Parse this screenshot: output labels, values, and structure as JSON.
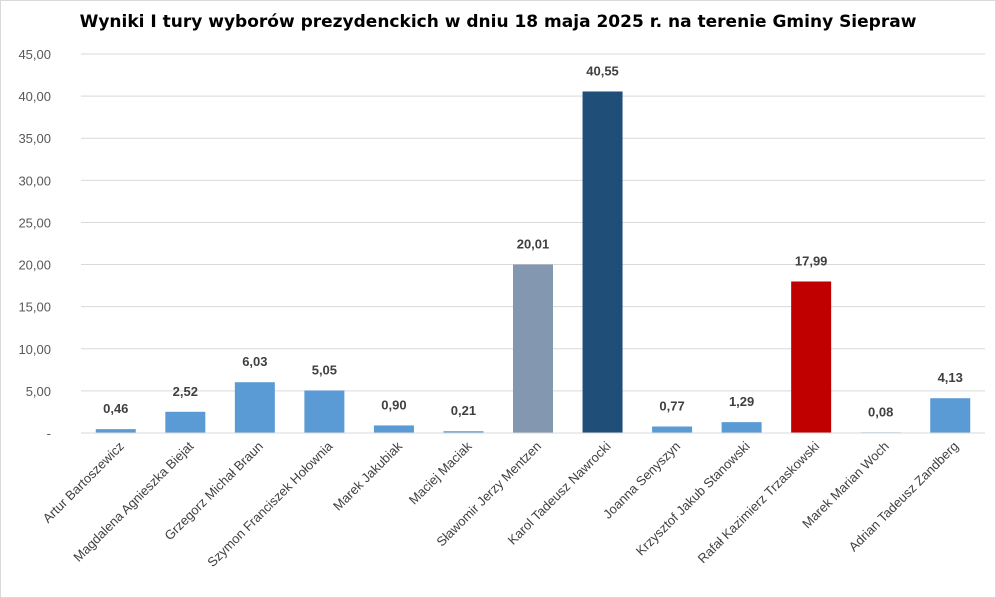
{
  "chart_data": {
    "type": "bar",
    "title": "Wyniki I tury wyborów prezydenckich w dniu 18 maja 2025 r. na terenie Gminy Siepraw",
    "xlabel": "",
    "ylabel": "",
    "ylim": [
      0,
      45
    ],
    "yticks": [
      "-",
      "5,00",
      "10,00",
      "15,00",
      "20,00",
      "25,00",
      "30,00",
      "35,00",
      "40,00",
      "45,00"
    ],
    "grid": true,
    "categories": [
      "Artur Bartoszewicz",
      "Magdalena Agnieszka Biejat",
      "Grzegorz Michał Braun",
      "Szymon Franciszek Hołownia",
      "Marek Jakubiak",
      "Maciej Maciak",
      "Sławomir Jerzy Mentzen",
      "Karol Tadeusz Nawrocki",
      "Joanna Senyszyn",
      "Krzysztof Jakub Stanowski",
      "Rafał Kazimierz Trzaskowski",
      "Marek Marian Woch",
      "Adrian Tadeusz Zandberg"
    ],
    "values": [
      0.46,
      2.52,
      6.03,
      5.05,
      0.9,
      0.21,
      20.01,
      40.55,
      0.77,
      1.29,
      17.99,
      0.08,
      4.13
    ],
    "labels": [
      "0,46",
      "2,52",
      "6,03",
      "5,05",
      "0,90",
      "0,21",
      "20,01",
      "40,55",
      "0,77",
      "1,29",
      "17,99",
      "0,08",
      "4,13"
    ],
    "colors": [
      "#5b9bd5",
      "#5b9bd5",
      "#5b9bd5",
      "#5b9bd5",
      "#5b9bd5",
      "#5b9bd5",
      "#8497b0",
      "#1f4e79",
      "#5b9bd5",
      "#5b9bd5",
      "#c00000",
      "#5b9bd5",
      "#5b9bd5"
    ]
  }
}
